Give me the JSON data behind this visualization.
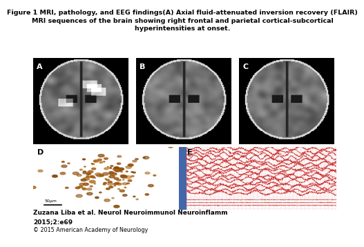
{
  "title_line1": "Figure 1 MRI, pathology, and EEG findings(A) Axial fluid-attenuated inversion recovery (FLAIR)",
  "title_line2": "MRI sequences of the brain showing right frontal and parietal cortical-subcortical",
  "title_line3": "hyperintensities at onset.",
  "citation": "Zuzana Liba et al. Neurol Neuroimmunol Neuroinflamm\n2015;2:e69",
  "copyright": "© 2015 American Academy of Neurology",
  "bg_color": "#ffffff",
  "title_fontsize": 6.8,
  "citation_fontsize": 6.5,
  "copyright_fontsize": 5.8,
  "mri_bg": "#111111",
  "patho_bg_color": "#c8b090",
  "patho_dot_color": "#b86818",
  "eeg_bg": "#f5f5f5",
  "eeg_grid_color": "#f0c0c0",
  "eeg_red": "#cc3333",
  "eeg_blue": "#3355bb",
  "eeg_sidebar": "#4466aa",
  "scalebar_text": "50μm",
  "label_fontsize": 8,
  "panel_label_color": "#ffffff",
  "panel_d_label_color": "#000000"
}
